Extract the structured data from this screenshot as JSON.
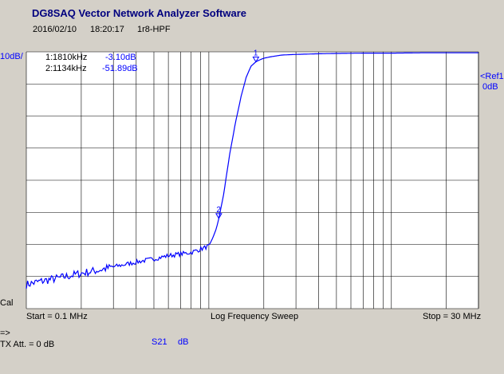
{
  "header": {
    "title": "DG8SAQ Vector Network Analyzer Software",
    "date": "2016/02/10",
    "time": "18:20:17",
    "name": "1r8-HPF"
  },
  "left_panel": {
    "scale": "10dB/",
    "cal": "Cal",
    "arrow": "=>",
    "tx_att": "TX Att.  = 0 dB"
  },
  "markers": [
    {
      "id": "1:",
      "freq": "1810kHz",
      "value": "-3.10dB",
      "label": "1"
    },
    {
      "id": "2:",
      "freq": "1134kHz",
      "value": "-51.89dB",
      "label": "2"
    }
  ],
  "reference": {
    "label": "<Ref1",
    "value": "0dB"
  },
  "footer": {
    "start": "Start = 0.1 MHz",
    "sweep": "Log Frequency Sweep",
    "stop": "Stop = 30 MHz",
    "trace": "S21",
    "unit": "dB"
  },
  "colors": {
    "trace": "#0000ff",
    "background": "#d4d0c8",
    "plot": "#ffffff",
    "grid": "#000000"
  },
  "chart_data": {
    "type": "line",
    "x_scale": "log",
    "xlim_mhz": [
      0.1,
      30
    ],
    "ylim_db": [
      -80,
      0
    ],
    "y_divisions": 8,
    "grid": true,
    "series": [
      {
        "x_mhz": [
          0.1,
          0.12,
          0.15,
          0.2,
          0.25,
          0.3,
          0.4,
          0.5,
          0.6,
          0.7,
          0.8,
          0.9,
          1.0,
          1.05,
          1.1,
          1.134,
          1.2,
          1.3,
          1.4,
          1.5,
          1.6,
          1.7,
          1.81,
          1.9,
          2.0,
          2.2,
          2.5,
          3,
          4,
          5,
          7,
          10,
          15,
          20,
          30
        ],
        "y_db": [
          -72.5,
          -71.5,
          -70.5,
          -69,
          -68,
          -67,
          -65.5,
          -64.5,
          -63.5,
          -63,
          -62.5,
          -61.5,
          -60.5,
          -58,
          -55,
          -51.89,
          -45,
          -32,
          -22,
          -14,
          -8,
          -4.5,
          -3.1,
          -2.5,
          -2.0,
          -1.5,
          -1.0,
          -0.8,
          -0.6,
          -0.5,
          -0.4,
          -0.4,
          -0.3,
          -0.3,
          -0.3
        ]
      }
    ]
  }
}
